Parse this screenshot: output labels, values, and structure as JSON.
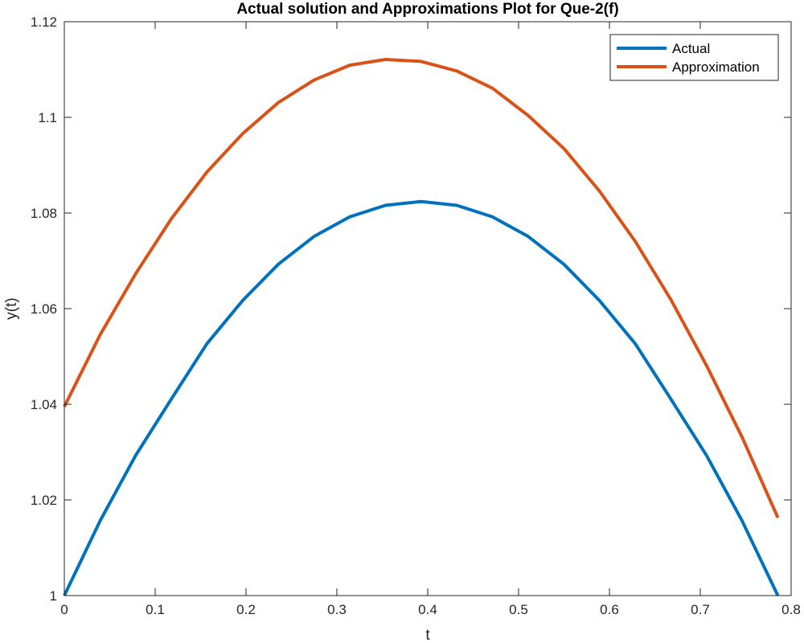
{
  "chart_data": {
    "type": "line",
    "title": "Actual solution and Approximations Plot for Que-2(f)",
    "xlabel": "t",
    "ylabel": "y(t)",
    "xlim": [
      0,
      0.8
    ],
    "ylim": [
      1,
      1.12
    ],
    "xticks": [
      "0",
      "0.1",
      "0.2",
      "0.3",
      "0.4",
      "0.5",
      "0.6",
      "0.7",
      "0.8"
    ],
    "yticks": [
      "1",
      "1.02",
      "1.04",
      "1.06",
      "1.08",
      "1.1",
      "1.12"
    ],
    "grid": false,
    "legend_position": "top-right",
    "x": [
      0,
      0.0393,
      0.0785,
      0.1178,
      0.1571,
      0.1963,
      0.2356,
      0.2749,
      0.3142,
      0.3534,
      0.3927,
      0.432,
      0.4712,
      0.5105,
      0.5498,
      0.589,
      0.6283,
      0.6676,
      0.7069,
      0.7461,
      0.7854
    ],
    "series": [
      {
        "name": "Actual",
        "color": "#0072BD",
        "values": [
          1.0,
          1.0156,
          1.0293,
          1.0411,
          1.0527,
          1.0617,
          1.0693,
          1.0751,
          1.0792,
          1.0816,
          1.0824,
          1.0816,
          1.0792,
          1.0751,
          1.0693,
          1.0617,
          1.0527,
          1.0411,
          1.0293,
          1.0156,
          1.0
        ]
      },
      {
        "name": "Approximation",
        "color": "#D95319",
        "values": [
          1.0395,
          1.0545,
          1.0673,
          1.0788,
          1.0886,
          1.0966,
          1.1031,
          1.1078,
          1.1109,
          1.1121,
          1.1117,
          1.1097,
          1.1061,
          1.1004,
          1.0935,
          1.0846,
          1.0741,
          1.0619,
          1.0481,
          1.0331,
          1.0163
        ]
      }
    ]
  }
}
